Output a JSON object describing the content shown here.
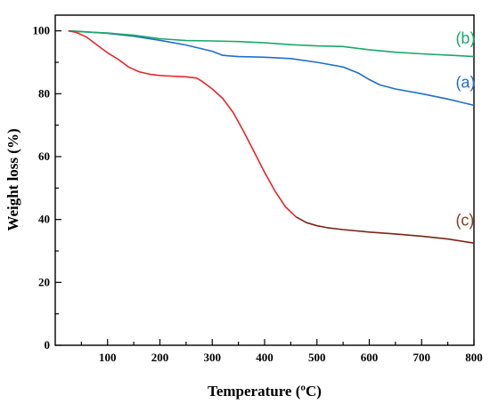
{
  "chart_data": {
    "type": "line",
    "xlabel": "Temperature (ºC)",
    "ylabel": "Weight loss (%)",
    "xlim": [
      0,
      800
    ],
    "ylim": [
      0,
      105
    ],
    "xticks": [
      100,
      200,
      300,
      400,
      500,
      600,
      700,
      800
    ],
    "yticks": [
      0,
      20,
      40,
      60,
      80,
      100
    ],
    "grid": false,
    "legend": "inline labels at right end of curves",
    "series": [
      {
        "name": "(a)",
        "color": "#1f6fc8",
        "x": [
          25,
          50,
          100,
          150,
          200,
          250,
          300,
          320,
          350,
          400,
          450,
          500,
          550,
          580,
          600,
          620,
          650,
          700,
          750,
          800
        ],
        "y": [
          100,
          99.8,
          99.2,
          98.3,
          97,
          95.5,
          93.5,
          92.2,
          91.8,
          91.6,
          91.2,
          90,
          88.5,
          86.5,
          84.5,
          82.8,
          81.5,
          80,
          78.3,
          76.3
        ]
      },
      {
        "name": "(b)",
        "color": "#1aa86b",
        "x": [
          25,
          50,
          100,
          150,
          200,
          250,
          300,
          350,
          400,
          450,
          500,
          550,
          600,
          650,
          700,
          750,
          800
        ],
        "y": [
          100,
          99.7,
          99.3,
          98.6,
          97.5,
          96.9,
          96.8,
          96.6,
          96.2,
          95.6,
          95.2,
          95,
          94,
          93.2,
          92.7,
          92.3,
          91.8
        ]
      },
      {
        "name": "(c)",
        "color": "#e8262b",
        "x": [
          25,
          40,
          60,
          80,
          100,
          120,
          140,
          160,
          180,
          200,
          220,
          250,
          270,
          280,
          300,
          320,
          340,
          360,
          380,
          400,
          420,
          440,
          460
        ],
        "y": [
          100,
          99.5,
          98,
          95.5,
          93,
          91,
          88.5,
          87,
          86.2,
          85.8,
          85.6,
          85.4,
          85,
          84,
          81.5,
          78.5,
          74,
          68,
          61.5,
          55,
          49,
          44,
          40.8
        ]
      },
      {
        "name": "(c)",
        "color": "#7a2415",
        "x": [
          460,
          480,
          500,
          520,
          550,
          600,
          650,
          700,
          750,
          800
        ],
        "y": [
          40.8,
          39,
          38,
          37.4,
          36.8,
          36,
          35.4,
          34.7,
          33.8,
          32.5
        ]
      }
    ],
    "labels": [
      {
        "text": "(b)",
        "color": "#1aa86b",
        "x": 765,
        "y": 96
      },
      {
        "text": "(a)",
        "color": "#1f6fc8",
        "x": 765,
        "y": 82
      },
      {
        "text": "(c)",
        "color": "#8b3a1e",
        "x": 765,
        "y": 38
      }
    ]
  }
}
